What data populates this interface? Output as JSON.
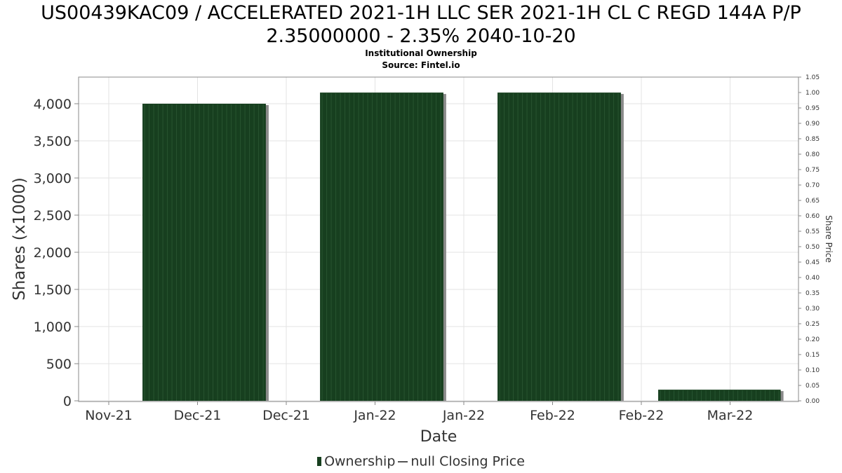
{
  "chart_data": {
    "type": "bar",
    "title": "US00439KAC09 / ACCELERATED 2021-1H LLC SER 2021-1H CL C REGD 144A P/P",
    "title_line2": "2.35000000 - 2.35% 2040-10-20",
    "subtitle": "Institutional Ownership",
    "source": "Source: Fintel.io",
    "xlabel": "Date",
    "ylabel": "Shares (x1000)",
    "y2label": "Share Price",
    "x_tick_labels": [
      "Nov-21",
      "Dec-21",
      "Dec-21",
      "Jan-22",
      "Jan-22",
      "Feb-22",
      "Feb-22",
      "Mar-22"
    ],
    "ylim": [
      0,
      4350
    ],
    "y_ticks": [
      0,
      500,
      1000,
      1500,
      2000,
      2500,
      3000,
      3500,
      4000
    ],
    "y_tick_labels": [
      "0",
      "500",
      "1,000",
      "1,500",
      "2,000",
      "2,500",
      "3,000",
      "3,500",
      "4,000"
    ],
    "y2lim": [
      0,
      1.05
    ],
    "y2_tick_labels": [
      "0.00",
      "0.05",
      "0.10",
      "0.15",
      "0.20",
      "0.25",
      "0.30",
      "0.35",
      "0.40",
      "0.45",
      "0.50",
      "0.55",
      "0.60",
      "0.65",
      "0.70",
      "0.75",
      "0.80",
      "0.85",
      "0.90",
      "0.95",
      "1.00",
      "1.05"
    ],
    "series": [
      {
        "name": "Ownership",
        "color": "#173f1f",
        "bars": [
          {
            "x_start": 0.38,
            "x_end": 1.77,
            "value": 4000
          },
          {
            "x_start": 2.38,
            "x_end": 3.77,
            "value": 4150
          },
          {
            "x_start": 4.38,
            "x_end": 5.77,
            "value": 4150
          },
          {
            "x_start": 6.19,
            "x_end": 7.57,
            "value": 150
          }
        ]
      },
      {
        "name": "null Closing Price",
        "values": []
      }
    ],
    "grid": true,
    "legend_position": "bottom"
  }
}
